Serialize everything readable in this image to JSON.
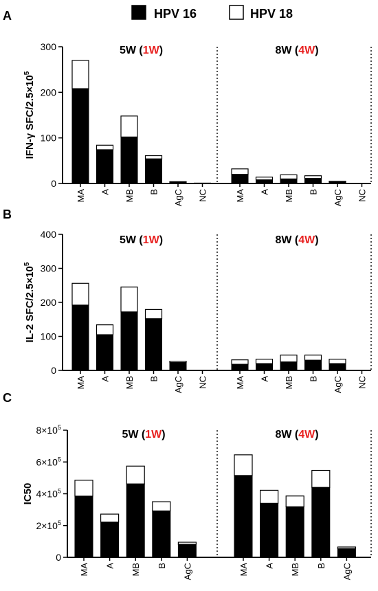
{
  "legend": {
    "items": [
      {
        "label": "HPV 16",
        "color": "#000000"
      },
      {
        "label": "HPV 18",
        "color": "#ffffff"
      }
    ]
  },
  "groups": [
    {
      "label_prefix": "5W (",
      "label_red": "1W",
      "label_suffix": ")"
    },
    {
      "label_prefix": "8W (",
      "label_red": "4W",
      "label_suffix": ")"
    }
  ],
  "accent_color": "#e8201f",
  "chart_data": [
    {
      "panel": "A",
      "type": "bar",
      "stacked": true,
      "ylabel_main": "IFN-γ SFC/2.5×10",
      "ylabel_sup": "5",
      "ylim": [
        0,
        300
      ],
      "yticks": [
        {
          "v": 0,
          "label": "0"
        },
        {
          "v": 100,
          "label": "100"
        },
        {
          "v": 200,
          "label": "200"
        },
        {
          "v": 300,
          "label": "300"
        }
      ],
      "categories": [
        [
          "MA",
          "A",
          "MB",
          "B",
          "AgC",
          "NC"
        ],
        [
          "MA",
          "A",
          "MB",
          "B",
          "AgC",
          "NC"
        ]
      ],
      "series": [
        {
          "name": "HPV 16",
          "values": [
            [
              208,
              74,
              102,
              54,
              3,
              1
            ],
            [
              20,
              8,
              10,
              11,
              3,
              0
            ]
          ]
        },
        {
          "name": "HPV 18",
          "values": [
            [
              62,
              10,
              46,
              7,
              1,
              0
            ],
            [
              12,
              6,
              9,
              6,
              2,
              0
            ]
          ]
        }
      ]
    },
    {
      "panel": "B",
      "type": "bar",
      "stacked": true,
      "ylabel_main": "IL-2 SFC/2.5×10",
      "ylabel_sup": "5",
      "ylim": [
        0,
        400
      ],
      "yticks": [
        {
          "v": 0,
          "label": "0"
        },
        {
          "v": 100,
          "label": "100"
        },
        {
          "v": 200,
          "label": "200"
        },
        {
          "v": 300,
          "label": "300"
        },
        {
          "v": 400,
          "label": "400"
        }
      ],
      "categories": [
        [
          "MA",
          "A",
          "MB",
          "B",
          "AgC",
          "NC"
        ],
        [
          "MA",
          "A",
          "MB",
          "B",
          "AgC",
          "NC"
        ]
      ],
      "series": [
        {
          "name": "HPV 16",
          "values": [
            [
              192,
              105,
              172,
              152,
              23,
              0
            ],
            [
              18,
              20,
              25,
              30,
              20,
              0
            ]
          ]
        },
        {
          "name": "HPV 18",
          "values": [
            [
              64,
              29,
              73,
              27,
              4,
              0
            ],
            [
              13,
              13,
              20,
              15,
              13,
              0
            ]
          ]
        }
      ]
    },
    {
      "panel": "C",
      "type": "bar",
      "stacked": true,
      "ylabel_main": "IC50",
      "ylabel_sup": "",
      "ylim": [
        0,
        800000
      ],
      "yticks": [
        {
          "v": 0,
          "label": "0",
          "sup": ""
        },
        {
          "v": 200000,
          "label": "2×10",
          "sup": "5"
        },
        {
          "v": 400000,
          "label": "4×10",
          "sup": "5"
        },
        {
          "v": 600000,
          "label": "6×10",
          "sup": "5"
        },
        {
          "v": 800000,
          "label": "8×10",
          "sup": "5"
        }
      ],
      "categories": [
        [
          "MA",
          "A",
          "MB",
          "B",
          "AgC"
        ],
        [
          "MA",
          "A",
          "MB",
          "B",
          "AgC"
        ]
      ],
      "series": [
        {
          "name": "HPV 16",
          "values": [
            [
              385000,
              222000,
              462000,
              292000,
              82000
            ],
            [
              515000,
              340000,
              318000,
              440000,
              55000
            ]
          ]
        },
        {
          "name": "HPV 18",
          "values": [
            [
              100000,
              50000,
              112000,
              58000,
              13000
            ],
            [
              130000,
              82000,
              68000,
              107000,
              10000
            ]
          ]
        }
      ]
    }
  ]
}
